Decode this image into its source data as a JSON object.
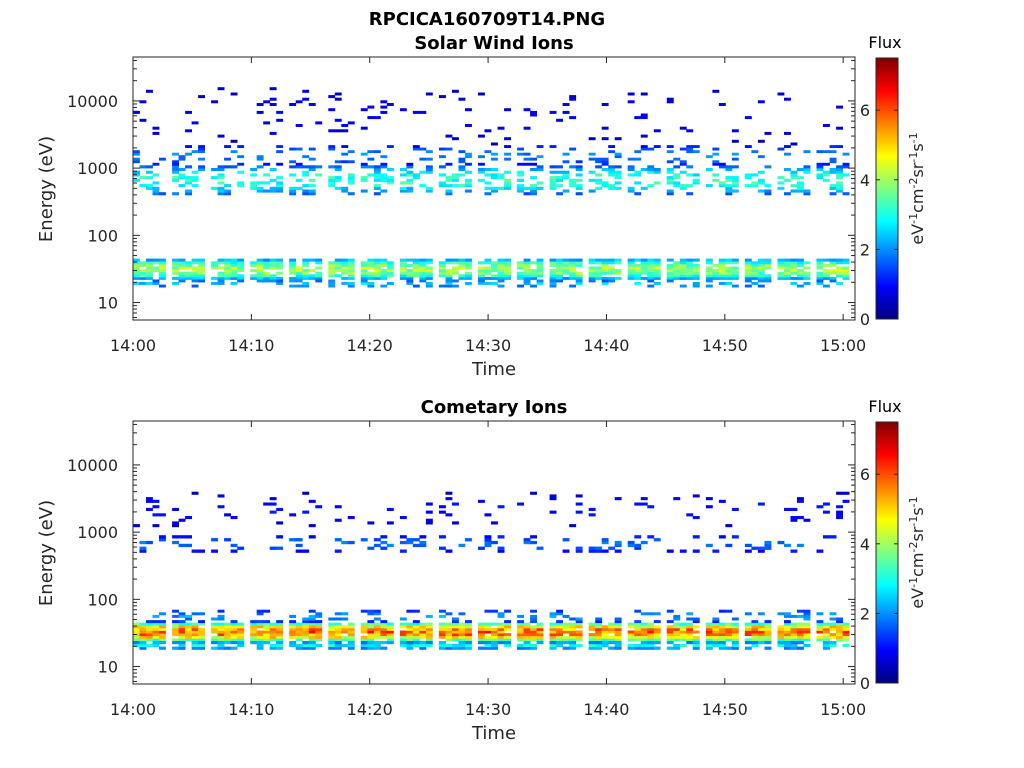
{
  "figure_title": "RPCICA160709T14.PNG",
  "chart_data": [
    {
      "type": "heatmap",
      "title": "Solar Wind Ions",
      "xlabel": "Time",
      "ylabel": "Energy (eV)",
      "x_ticks": [
        "14:00",
        "14:10",
        "14:20",
        "14:30",
        "14:40",
        "14:50",
        "15:00"
      ],
      "x_range_minutes": [
        0,
        61
      ],
      "y_scale": "log",
      "y_range": [
        5.5,
        45000
      ],
      "y_ticks": [
        10,
        100,
        1000,
        10000
      ],
      "y_tick_labels": [
        "10",
        "100",
        "1000",
        "10000"
      ],
      "colorbar": {
        "title": "Flux",
        "label": "eV-1cm-2sr-1s-1",
        "range": [
          0,
          7.5
        ],
        "ticks": [
          0,
          2,
          4,
          6
        ],
        "tick_labels": [
          "0",
          "2",
          "4",
          "6"
        ],
        "colormap": "jet"
      },
      "bands": [
        {
          "energy_low": 22,
          "energy_high": 45,
          "peak_flux": 4.6,
          "coverage": 0.85
        },
        {
          "energy_low": 17,
          "energy_high": 22,
          "peak_flux": 2.8,
          "coverage": 0.35
        },
        {
          "energy_low": 400,
          "energy_high": 1100,
          "peak_flux": 3.6,
          "coverage": 0.4
        },
        {
          "energy_low": 1100,
          "energy_high": 2200,
          "peak_flux": 2.2,
          "coverage": 0.22
        },
        {
          "energy_low": 2200,
          "energy_high": 16000,
          "peak_flux": 1.0,
          "coverage": 0.05
        }
      ],
      "grid": false,
      "legend": "colorbar-right"
    },
    {
      "type": "heatmap",
      "title": "Cometary Ions",
      "xlabel": "Time",
      "ylabel": "Energy (eV)",
      "x_ticks": [
        "14:00",
        "14:10",
        "14:20",
        "14:30",
        "14:40",
        "14:50",
        "15:00"
      ],
      "x_range_minutes": [
        0,
        61
      ],
      "y_scale": "log",
      "y_range": [
        5.5,
        45000
      ],
      "y_ticks": [
        10,
        100,
        1000,
        10000
      ],
      "y_tick_labels": [
        "10",
        "100",
        "1000",
        "10000"
      ],
      "colorbar": {
        "title": "Flux",
        "label": "eV-1cm-2sr-1s-1",
        "range": [
          0,
          7.5
        ],
        "ticks": [
          0,
          2,
          4,
          6
        ],
        "tick_labels": [
          "0",
          "2",
          "4",
          "6"
        ],
        "colormap": "jet"
      },
      "bands": [
        {
          "energy_low": 24,
          "energy_high": 45,
          "peak_flux": 6.6,
          "coverage": 0.95
        },
        {
          "energy_low": 18,
          "energy_high": 24,
          "peak_flux": 3.2,
          "coverage": 0.7
        },
        {
          "energy_low": 45,
          "energy_high": 70,
          "peak_flux": 2.4,
          "coverage": 0.3
        },
        {
          "energy_low": 500,
          "energy_high": 900,
          "peak_flux": 2.0,
          "coverage": 0.2
        },
        {
          "energy_low": 1200,
          "energy_high": 4000,
          "peak_flux": 1.2,
          "coverage": 0.08
        }
      ],
      "grid": false,
      "legend": "colorbar-right"
    }
  ]
}
